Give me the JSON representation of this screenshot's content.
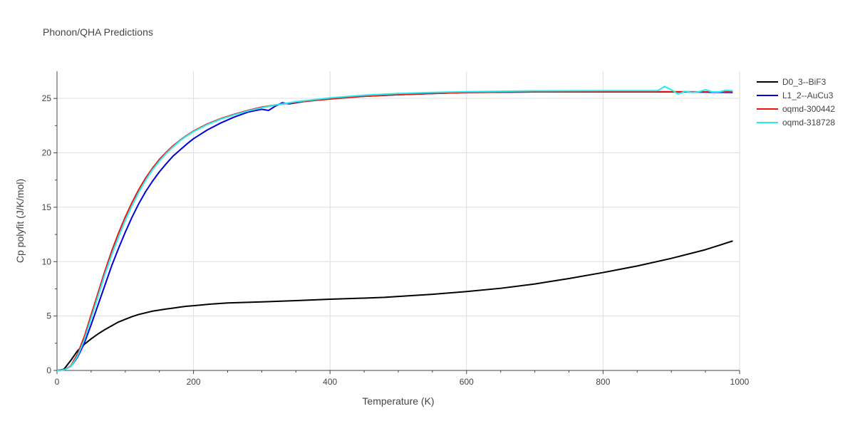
{
  "chart_data": {
    "type": "line",
    "title": "Phonon/QHA Predictions",
    "xlabel": "Temperature (K)",
    "ylabel": "Cp polyfit (J/K/mol)",
    "xlim": [
      0,
      1000
    ],
    "ylim": [
      0,
      27.5
    ],
    "xticks": [
      0,
      200,
      400,
      600,
      800,
      1000
    ],
    "yticks": [
      0,
      5,
      10,
      15,
      20,
      25
    ],
    "grid": true,
    "legend": "right",
    "series": [
      {
        "name": "D0_3--BiF3",
        "color": "#000000",
        "x": [
          0,
          10,
          20,
          30,
          40,
          50,
          60,
          70,
          80,
          90,
          100,
          110,
          120,
          130,
          140,
          150,
          160,
          170,
          180,
          190,
          200,
          225,
          250,
          300,
          350,
          400,
          450,
          480,
          500,
          550,
          600,
          650,
          700,
          750,
          800,
          850,
          900,
          950,
          990
        ],
        "y": [
          0,
          0.1,
          0.9,
          1.8,
          2.4,
          2.9,
          3.35,
          3.75,
          4.1,
          4.45,
          4.7,
          4.95,
          5.15,
          5.3,
          5.45,
          5.55,
          5.65,
          5.73,
          5.82,
          5.9,
          5.95,
          6.1,
          6.2,
          6.3,
          6.42,
          6.55,
          6.65,
          6.72,
          6.8,
          7.0,
          7.25,
          7.55,
          7.95,
          8.45,
          9.0,
          9.6,
          10.3,
          11.1,
          11.9
        ]
      },
      {
        "name": "L1_2--AuCu3",
        "color": "#0000dd",
        "x": [
          0,
          10,
          20,
          30,
          40,
          50,
          60,
          70,
          80,
          90,
          100,
          110,
          120,
          130,
          140,
          150,
          160,
          170,
          180,
          190,
          200,
          220,
          240,
          260,
          280,
          300,
          310,
          320,
          330,
          340,
          360,
          380,
          400,
          450,
          500,
          550,
          600,
          700,
          800,
          900,
          990
        ],
        "y": [
          0,
          0.05,
          0.35,
          1.2,
          2.5,
          4.2,
          6.0,
          7.8,
          9.6,
          11.2,
          12.7,
          14.1,
          15.35,
          16.45,
          17.4,
          18.25,
          19.0,
          19.7,
          20.25,
          20.8,
          21.3,
          22.1,
          22.75,
          23.3,
          23.75,
          24.0,
          23.9,
          24.3,
          24.6,
          24.5,
          24.7,
          24.85,
          25.0,
          25.2,
          25.35,
          25.45,
          25.55,
          25.6,
          25.6,
          25.6,
          25.55
        ]
      },
      {
        "name": "oqmd-300442",
        "color": "#ee1111",
        "x": [
          0,
          10,
          20,
          30,
          40,
          50,
          60,
          70,
          80,
          90,
          100,
          110,
          120,
          130,
          140,
          150,
          160,
          170,
          180,
          190,
          200,
          220,
          240,
          260,
          280,
          300,
          325,
          350,
          400,
          450,
          500,
          550,
          600,
          700,
          800,
          900,
          990
        ],
        "y": [
          0,
          0.05,
          0.4,
          1.5,
          3.1,
          5.1,
          7.1,
          9.1,
          10.95,
          12.6,
          14.1,
          15.45,
          16.65,
          17.7,
          18.6,
          19.4,
          20.05,
          20.65,
          21.15,
          21.6,
          22.0,
          22.65,
          23.15,
          23.55,
          23.9,
          24.2,
          24.45,
          24.65,
          24.95,
          25.2,
          25.35,
          25.45,
          25.55,
          25.6,
          25.62,
          25.62,
          25.6
        ]
      },
      {
        "name": "oqmd-318728",
        "color": "#22eeee",
        "x": [
          0,
          10,
          20,
          30,
          40,
          50,
          60,
          70,
          80,
          90,
          100,
          110,
          120,
          130,
          140,
          150,
          160,
          170,
          180,
          190,
          200,
          220,
          240,
          260,
          280,
          300,
          325,
          350,
          400,
          450,
          500,
          550,
          600,
          700,
          800,
          880,
          890,
          900,
          910,
          920,
          930,
          940,
          950,
          960,
          970,
          980,
          990
        ],
        "y": [
          0,
          0.05,
          0.35,
          1.3,
          2.8,
          4.8,
          6.8,
          8.8,
          10.6,
          12.25,
          13.8,
          15.15,
          16.4,
          17.5,
          18.45,
          19.25,
          19.95,
          20.55,
          21.1,
          21.55,
          21.95,
          22.6,
          23.1,
          23.5,
          23.85,
          24.15,
          24.45,
          24.7,
          25.05,
          25.3,
          25.45,
          25.55,
          25.62,
          25.7,
          25.72,
          25.72,
          26.1,
          25.8,
          25.4,
          25.65,
          25.55,
          25.6,
          25.8,
          25.6,
          25.6,
          25.75,
          25.7
        ]
      }
    ]
  }
}
